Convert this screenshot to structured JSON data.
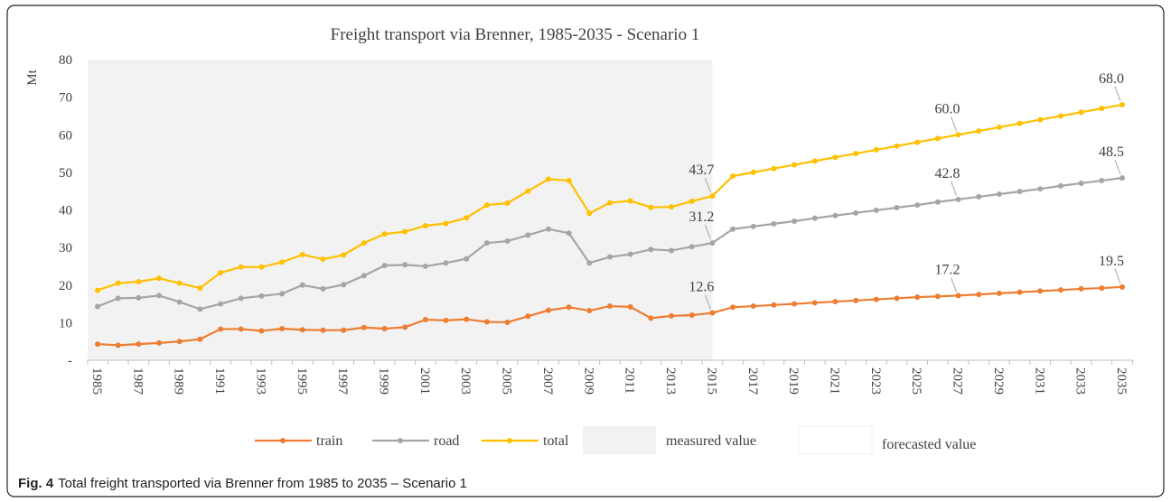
{
  "chart_data": {
    "type": "line",
    "title": "Freight transport via Brenner, 1985-2035 - Scenario 1",
    "ylabel": "Mt",
    "categories": [
      "1985",
      null,
      "1987",
      null,
      "1989",
      null,
      "1991",
      null,
      "1993",
      null,
      "1995",
      null,
      "1997",
      null,
      "1999",
      null,
      "2001",
      null,
      "2003",
      null,
      "2005",
      null,
      "2007",
      null,
      "2009",
      null,
      "2011",
      null,
      "2013",
      null,
      "2015",
      null,
      "2017",
      null,
      "2019",
      null,
      "2021",
      null,
      "2023",
      null,
      "2025",
      null,
      "2027",
      null,
      "2029",
      null,
      "2031",
      null,
      "2033",
      null,
      "2035"
    ],
    "ylim": [
      0,
      80
    ],
    "yticks": [
      {
        "value": 0,
        "label": "-"
      },
      10,
      20,
      30,
      40,
      50,
      60,
      70,
      80
    ],
    "series": [
      {
        "name": "train",
        "color": "#ed7d31",
        "values": [
          4.3,
          4.0,
          4.3,
          4.6,
          5.0,
          5.6,
          8.3,
          8.3,
          7.8,
          8.4,
          8.1,
          8.0,
          8.0,
          8.7,
          8.4,
          8.8,
          10.8,
          10.6,
          10.9,
          10.2,
          10.1,
          11.7,
          13.3,
          14.1,
          13.2,
          14.4,
          14.2,
          11.2,
          11.8,
          12.0,
          12.6,
          14.1,
          14.4,
          14.7,
          15.0,
          15.3,
          15.6,
          15.9,
          16.2,
          16.5,
          16.8,
          17.0,
          17.2,
          17.5,
          17.8,
          18.1,
          18.4,
          18.7,
          19.0,
          19.2,
          19.5
        ],
        "value_labels": [
          null,
          null,
          null,
          null,
          null,
          null,
          null,
          null,
          null,
          null,
          null,
          null,
          null,
          null,
          null,
          null,
          null,
          null,
          null,
          null,
          null,
          null,
          null,
          null,
          null,
          null,
          null,
          null,
          null,
          null,
          "12.6",
          null,
          null,
          null,
          null,
          null,
          null,
          null,
          null,
          null,
          null,
          null,
          "17.2",
          null,
          null,
          null,
          null,
          null,
          null,
          null,
          "19.5"
        ]
      },
      {
        "name": "road",
        "color": "#a5a5a5",
        "values": [
          14.3,
          16.5,
          16.6,
          17.2,
          15.5,
          13.6,
          15.0,
          16.5,
          17.1,
          17.7,
          20.0,
          19.0,
          20.1,
          22.5,
          25.2,
          25.4,
          25.0,
          25.9,
          27.0,
          31.2,
          31.7,
          33.3,
          34.9,
          33.8,
          25.9,
          27.5,
          28.2,
          29.5,
          29.2,
          30.2,
          31.2,
          34.9,
          35.6,
          36.3,
          37.0,
          37.8,
          38.5,
          39.2,
          39.9,
          40.6,
          41.3,
          42.1,
          42.8,
          43.5,
          44.2,
          44.9,
          45.6,
          46.4,
          47.1,
          47.8,
          48.5
        ],
        "value_labels": [
          null,
          null,
          null,
          null,
          null,
          null,
          null,
          null,
          null,
          null,
          null,
          null,
          null,
          null,
          null,
          null,
          null,
          null,
          null,
          null,
          null,
          null,
          null,
          null,
          null,
          null,
          null,
          null,
          null,
          null,
          "31.2",
          null,
          null,
          null,
          null,
          null,
          null,
          null,
          null,
          null,
          null,
          null,
          "42.8",
          null,
          null,
          null,
          null,
          null,
          null,
          null,
          "48.5"
        ]
      },
      {
        "name": "total",
        "color": "#ffc000",
        "values": [
          18.6,
          20.5,
          20.9,
          21.8,
          20.5,
          19.2,
          23.3,
          24.8,
          24.8,
          26.1,
          28.1,
          26.9,
          28.0,
          31.2,
          33.6,
          34.2,
          35.8,
          36.4,
          37.9,
          41.3,
          41.8,
          45.0,
          48.2,
          47.8,
          39.1,
          41.9,
          42.4,
          40.7,
          40.8,
          42.3,
          43.7,
          49.0,
          50.0,
          51.0,
          52.0,
          53.0,
          54.0,
          55.0,
          56.0,
          57.0,
          58.0,
          59.0,
          60.0,
          61.0,
          62.0,
          63.0,
          64.0,
          65.0,
          66.0,
          67.0,
          68.0
        ],
        "value_labels": [
          null,
          null,
          null,
          null,
          null,
          null,
          null,
          null,
          null,
          null,
          null,
          null,
          null,
          null,
          null,
          null,
          null,
          null,
          null,
          null,
          null,
          null,
          null,
          null,
          null,
          null,
          null,
          null,
          null,
          null,
          "43.7",
          null,
          null,
          null,
          null,
          null,
          null,
          null,
          null,
          null,
          null,
          null,
          "60.0",
          null,
          null,
          null,
          null,
          null,
          null,
          null,
          "68.0"
        ]
      }
    ],
    "regions": [
      {
        "name": "measured value",
        "color": "#f2f2f2",
        "from": "1985",
        "to": "2015"
      },
      {
        "name": "forecasted value",
        "color": "#ffffff",
        "from": "2015",
        "to": "2035"
      }
    ],
    "caption": {
      "label": "Fig. 4",
      "text": "Total freight transported via Brenner from 1985 to 2035 – Scenario 1"
    }
  }
}
